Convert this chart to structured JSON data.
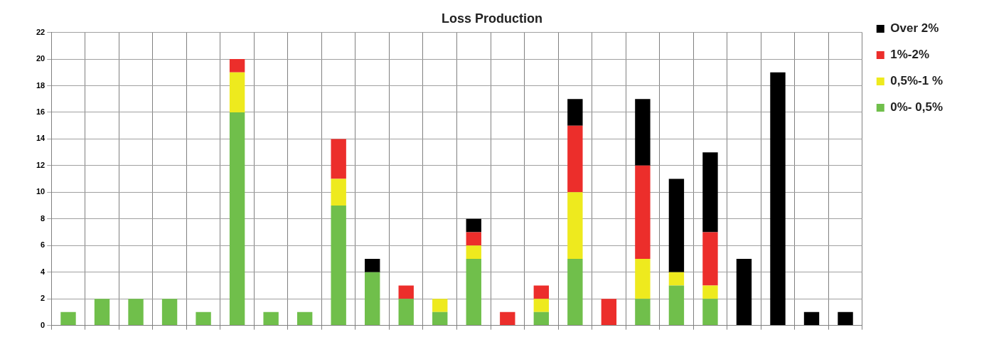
{
  "chart_data": {
    "type": "bar",
    "title": "Loss Production",
    "stacked": true,
    "grid": true,
    "legend": "right",
    "categories": [
      null,
      null,
      null,
      null,
      null,
      null,
      null,
      null,
      null,
      null,
      null,
      null,
      null,
      null,
      null,
      null,
      null,
      null,
      null,
      null,
      null,
      null,
      null,
      null
    ],
    "series": [
      {
        "name": "0%- 0,5%",
        "color": "#70bf4b",
        "values": [
          1,
          2,
          2,
          2,
          1,
          16,
          1,
          1,
          9,
          4,
          2,
          1,
          5,
          0,
          1,
          5,
          0,
          2,
          3,
          2,
          0,
          0,
          0,
          0
        ]
      },
      {
        "name": "0,5%-1 %",
        "color": "#eeea1e",
        "values": [
          0,
          0,
          0,
          0,
          0,
          3,
          0,
          0,
          2,
          0,
          0,
          1,
          1,
          0,
          1,
          5,
          0,
          3,
          1,
          1,
          0,
          0,
          0,
          0
        ]
      },
      {
        "name": "1%-2%",
        "color": "#ec2e2b",
        "values": [
          0,
          0,
          0,
          0,
          0,
          1,
          0,
          0,
          3,
          0,
          1,
          0,
          1,
          1,
          1,
          5,
          2,
          7,
          0,
          4,
          0,
          0,
          0,
          0
        ]
      },
      {
        "name": "Over 2%",
        "color": "#000000",
        "values": [
          0,
          0,
          0,
          0,
          0,
          0,
          0,
          0,
          0,
          1,
          0,
          0,
          1,
          0,
          0,
          2,
          0,
          5,
          7,
          6,
          5,
          19,
          1,
          1
        ]
      }
    ],
    "ylim": [
      0,
      22
    ],
    "yticks": [
      0,
      2,
      4,
      6,
      8,
      10,
      12,
      14,
      16,
      18,
      20,
      22
    ]
  }
}
